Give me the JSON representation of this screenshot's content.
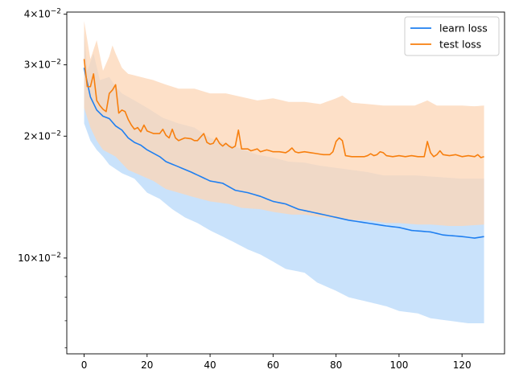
{
  "chart_data": {
    "type": "line",
    "yscale": "log",
    "xlim": [
      -5.5,
      133.5
    ],
    "ylim": [
      0.0058,
      0.0405
    ],
    "grid": false,
    "legend_position": "top-right",
    "xticks": [
      0,
      20,
      40,
      60,
      80,
      100,
      120
    ],
    "yticks": [
      {
        "value": 0.04,
        "mantissa": "4",
        "exp": "−2"
      },
      {
        "value": 0.03,
        "mantissa": "3",
        "exp": "−2"
      },
      {
        "value": 0.02,
        "mantissa": "2",
        "exp": "−2"
      },
      {
        "value": 0.01,
        "mantissa": "10",
        "exp": "−2"
      }
    ],
    "series": [
      {
        "name": "learn loss",
        "color": "#1f7ff0",
        "band_color": "#c9e2fb",
        "keypoints": [
          [
            0,
            0.0295
          ],
          [
            2,
            0.025
          ],
          [
            4,
            0.0232
          ],
          [
            6,
            0.0224
          ],
          [
            8,
            0.0221
          ],
          [
            10,
            0.0212
          ],
          [
            12,
            0.0207
          ],
          [
            14,
            0.0198
          ],
          [
            16,
            0.0193
          ],
          [
            18,
            0.019
          ],
          [
            20,
            0.0185
          ],
          [
            24,
            0.0178
          ],
          [
            26,
            0.0173
          ],
          [
            30,
            0.0168
          ],
          [
            34,
            0.0163
          ],
          [
            40,
            0.0155
          ],
          [
            44,
            0.0153
          ],
          [
            48,
            0.0147
          ],
          [
            52,
            0.0145
          ],
          [
            56,
            0.0142
          ],
          [
            60,
            0.0138
          ],
          [
            64,
            0.0136
          ],
          [
            68,
            0.0132
          ],
          [
            72,
            0.013
          ],
          [
            76,
            0.0128
          ],
          [
            80,
            0.0126
          ],
          [
            84,
            0.0124
          ],
          [
            90,
            0.0122
          ],
          [
            96,
            0.012
          ],
          [
            100,
            0.0119
          ],
          [
            104,
            0.0117
          ],
          [
            110,
            0.0116
          ],
          [
            114,
            0.0114
          ],
          [
            120,
            0.0113
          ],
          [
            124,
            0.0112
          ],
          [
            127,
            0.0113
          ]
        ],
        "upper_keypoints": [
          [
            0,
            0.0365
          ],
          [
            1,
            0.029
          ],
          [
            3,
            0.032
          ],
          [
            5,
            0.0275
          ],
          [
            8,
            0.028
          ],
          [
            10,
            0.0265
          ],
          [
            12,
            0.0255
          ],
          [
            16,
            0.0245
          ],
          [
            20,
            0.0235
          ],
          [
            25,
            0.0222
          ],
          [
            30,
            0.0215
          ],
          [
            35,
            0.021
          ],
          [
            40,
            0.0198
          ],
          [
            45,
            0.0192
          ],
          [
            50,
            0.0186
          ],
          [
            55,
            0.018
          ],
          [
            60,
            0.0177
          ],
          [
            65,
            0.0173
          ],
          [
            70,
            0.0172
          ],
          [
            75,
            0.0169
          ],
          [
            80,
            0.0167
          ],
          [
            85,
            0.0165
          ],
          [
            90,
            0.0163
          ],
          [
            95,
            0.016
          ],
          [
            100,
            0.016
          ],
          [
            105,
            0.016
          ],
          [
            110,
            0.0159
          ],
          [
            115,
            0.0158
          ],
          [
            120,
            0.0157
          ],
          [
            127,
            0.0157
          ]
        ],
        "lower_keypoints": [
          [
            0,
            0.0215
          ],
          [
            2,
            0.0195
          ],
          [
            4,
            0.0185
          ],
          [
            6,
            0.0178
          ],
          [
            8,
            0.017
          ],
          [
            12,
            0.0162
          ],
          [
            16,
            0.0157
          ],
          [
            20,
            0.0145
          ],
          [
            24,
            0.014
          ],
          [
            28,
            0.0132
          ],
          [
            32,
            0.0126
          ],
          [
            36,
            0.0122
          ],
          [
            40,
            0.0117
          ],
          [
            44,
            0.0113
          ],
          [
            48,
            0.0109
          ],
          [
            52,
            0.0105
          ],
          [
            56,
            0.0102
          ],
          [
            60,
            0.0098
          ],
          [
            64,
            0.0094
          ],
          [
            70,
            0.0092
          ],
          [
            74,
            0.0087
          ],
          [
            80,
            0.0083
          ],
          [
            84,
            0.008
          ],
          [
            90,
            0.0078
          ],
          [
            96,
            0.0076
          ],
          [
            100,
            0.0074
          ],
          [
            106,
            0.0073
          ],
          [
            110,
            0.0071
          ],
          [
            116,
            0.007
          ],
          [
            122,
            0.0069
          ],
          [
            127,
            0.0069
          ]
        ]
      },
      {
        "name": "test loss",
        "color": "#f77f0e",
        "band_color": "#fcd6b6",
        "keypoints": [
          [
            0,
            0.031
          ],
          [
            1,
            0.0265
          ],
          [
            2,
            0.0265
          ],
          [
            3,
            0.0285
          ],
          [
            4,
            0.0245
          ],
          [
            5,
            0.0238
          ],
          [
            6,
            0.0233
          ],
          [
            7,
            0.023
          ],
          [
            8,
            0.0255
          ],
          [
            9,
            0.026
          ],
          [
            10,
            0.0268
          ],
          [
            11,
            0.0228
          ],
          [
            12,
            0.0232
          ],
          [
            13,
            0.023
          ],
          [
            14,
            0.022
          ],
          [
            15,
            0.0213
          ],
          [
            16,
            0.0208
          ],
          [
            17,
            0.021
          ],
          [
            18,
            0.0205
          ],
          [
            19,
            0.0213
          ],
          [
            20,
            0.0206
          ],
          [
            22,
            0.0203
          ],
          [
            24,
            0.0203
          ],
          [
            25,
            0.0208
          ],
          [
            26,
            0.0201
          ],
          [
            27,
            0.0198
          ],
          [
            28,
            0.0208
          ],
          [
            29,
            0.0198
          ],
          [
            30,
            0.0195
          ],
          [
            32,
            0.0198
          ],
          [
            34,
            0.0197
          ],
          [
            35,
            0.0195
          ],
          [
            36,
            0.0195
          ],
          [
            37,
            0.0199
          ],
          [
            38,
            0.0203
          ],
          [
            39,
            0.0193
          ],
          [
            40,
            0.0191
          ],
          [
            41,
            0.0192
          ],
          [
            42,
            0.0198
          ],
          [
            43,
            0.0192
          ],
          [
            44,
            0.0189
          ],
          [
            45,
            0.0192
          ],
          [
            46,
            0.0189
          ],
          [
            47,
            0.0187
          ],
          [
            48,
            0.0189
          ],
          [
            49,
            0.0207
          ],
          [
            50,
            0.0186
          ],
          [
            52,
            0.0186
          ],
          [
            53,
            0.0184
          ],
          [
            55,
            0.0186
          ],
          [
            56,
            0.0183
          ],
          [
            58,
            0.0185
          ],
          [
            60,
            0.0183
          ],
          [
            62,
            0.0183
          ],
          [
            64,
            0.0182
          ],
          [
            65,
            0.0184
          ],
          [
            66,
            0.0187
          ],
          [
            67,
            0.0183
          ],
          [
            68,
            0.0182
          ],
          [
            70,
            0.0183
          ],
          [
            72,
            0.0182
          ],
          [
            74,
            0.0181
          ],
          [
            76,
            0.018
          ],
          [
            78,
            0.018
          ],
          [
            79,
            0.0183
          ],
          [
            80,
            0.0194
          ],
          [
            81,
            0.0198
          ],
          [
            82,
            0.0195
          ],
          [
            83,
            0.0179
          ],
          [
            85,
            0.0178
          ],
          [
            87,
            0.0178
          ],
          [
            89,
            0.0178
          ],
          [
            90,
            0.0179
          ],
          [
            91,
            0.0181
          ],
          [
            92,
            0.0179
          ],
          [
            93,
            0.018
          ],
          [
            94,
            0.0183
          ],
          [
            95,
            0.0182
          ],
          [
            96,
            0.0179
          ],
          [
            98,
            0.0178
          ],
          [
            100,
            0.0179
          ],
          [
            102,
            0.0178
          ],
          [
            104,
            0.0179
          ],
          [
            106,
            0.0178
          ],
          [
            108,
            0.0178
          ],
          [
            109,
            0.0194
          ],
          [
            110,
            0.0182
          ],
          [
            111,
            0.0178
          ],
          [
            112,
            0.018
          ],
          [
            113,
            0.0184
          ],
          [
            114,
            0.018
          ],
          [
            116,
            0.0179
          ],
          [
            118,
            0.018
          ],
          [
            120,
            0.0178
          ],
          [
            122,
            0.0179
          ],
          [
            124,
            0.0178
          ],
          [
            125,
            0.018
          ],
          [
            126,
            0.0177
          ],
          [
            127,
            0.0178
          ]
        ],
        "upper_keypoints": [
          [
            0,
            0.0385
          ],
          [
            2,
            0.031
          ],
          [
            4,
            0.0345
          ],
          [
            6,
            0.029
          ],
          [
            8,
            0.0315
          ],
          [
            9,
            0.0335
          ],
          [
            10,
            0.032
          ],
          [
            12,
            0.0295
          ],
          [
            14,
            0.0285
          ],
          [
            18,
            0.028
          ],
          [
            22,
            0.0275
          ],
          [
            26,
            0.0268
          ],
          [
            30,
            0.0262
          ],
          [
            35,
            0.0262
          ],
          [
            40,
            0.0255
          ],
          [
            45,
            0.0255
          ],
          [
            50,
            0.025
          ],
          [
            55,
            0.0245
          ],
          [
            60,
            0.0248
          ],
          [
            65,
            0.0243
          ],
          [
            70,
            0.0243
          ],
          [
            75,
            0.024
          ],
          [
            80,
            0.0248
          ],
          [
            82,
            0.0252
          ],
          [
            85,
            0.0242
          ],
          [
            90,
            0.024
          ],
          [
            95,
            0.0238
          ],
          [
            100,
            0.0238
          ],
          [
            105,
            0.0238
          ],
          [
            109,
            0.0245
          ],
          [
            112,
            0.0238
          ],
          [
            116,
            0.0238
          ],
          [
            120,
            0.0238
          ],
          [
            124,
            0.0237
          ],
          [
            127,
            0.0238
          ]
        ],
        "lower_keypoints": [
          [
            0,
            0.0235
          ],
          [
            2,
            0.021
          ],
          [
            4,
            0.0195
          ],
          [
            6,
            0.0185
          ],
          [
            10,
            0.0178
          ],
          [
            14,
            0.0165
          ],
          [
            18,
            0.016
          ],
          [
            22,
            0.0155
          ],
          [
            26,
            0.0148
          ],
          [
            30,
            0.0145
          ],
          [
            34,
            0.0142
          ],
          [
            40,
            0.0138
          ],
          [
            46,
            0.0136
          ],
          [
            50,
            0.0133
          ],
          [
            56,
            0.0132
          ],
          [
            60,
            0.013
          ],
          [
            66,
            0.0128
          ],
          [
            70,
            0.0128
          ],
          [
            76,
            0.0126
          ],
          [
            80,
            0.0125
          ],
          [
            86,
            0.0124
          ],
          [
            90,
            0.0124
          ],
          [
            96,
            0.0122
          ],
          [
            100,
            0.0122
          ],
          [
            106,
            0.0121
          ],
          [
            110,
            0.0121
          ],
          [
            116,
            0.012
          ],
          [
            120,
            0.012
          ],
          [
            127,
            0.0121
          ]
        ]
      }
    ]
  }
}
